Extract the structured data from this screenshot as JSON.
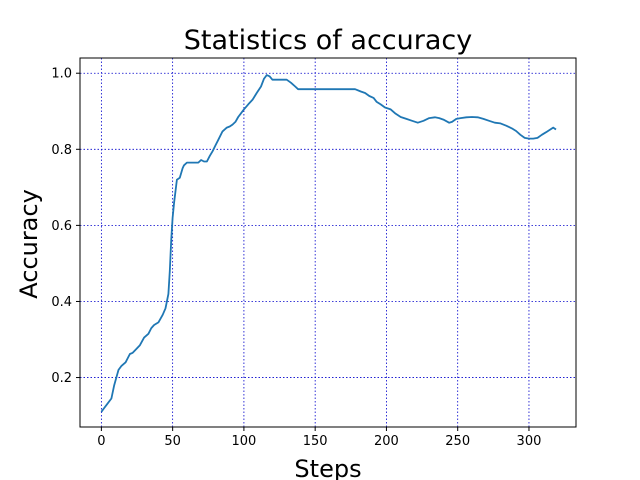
{
  "chart_data": {
    "type": "line",
    "title": "Statistics of accuracy",
    "xlabel": "Steps",
    "ylabel": "Accuracy",
    "xlim": [
      -15,
      333
    ],
    "ylim": [
      0.07,
      1.04
    ],
    "xticks": [
      0,
      50,
      100,
      150,
      200,
      250,
      300
    ],
    "yticks": [
      0.2,
      0.4,
      0.6,
      0.8,
      1.0
    ],
    "ytick_labels": [
      "0.2",
      "0.4",
      "0.6",
      "0.8",
      "1.0"
    ],
    "grid": true,
    "series": [
      {
        "color": "#1f77b4",
        "x": [
          0,
          2,
          4,
          7,
          9,
          12,
          14,
          17,
          20,
          22,
          24,
          27,
          30,
          33,
          35,
          37,
          40,
          43,
          45,
          47,
          48,
          49,
          50,
          51,
          52,
          53,
          55,
          57,
          58,
          60,
          62,
          65,
          68,
          70,
          72,
          74,
          76,
          78,
          80,
          82,
          85,
          88,
          90,
          92,
          94,
          96,
          98,
          100,
          103,
          106,
          109,
          112,
          114,
          116,
          118,
          120,
          125,
          130,
          133,
          136,
          138,
          140,
          150,
          160,
          170,
          178,
          182,
          185,
          188,
          191,
          193,
          196,
          199,
          203,
          206,
          210,
          214,
          218,
          222,
          226,
          230,
          234,
          237,
          240,
          244,
          246,
          249,
          252,
          256,
          260,
          264,
          268,
          272,
          276,
          280,
          284,
          288,
          291,
          294,
          297,
          300,
          303,
          306,
          309,
          312,
          315,
          317,
          319
        ],
        "y": [
          0.11,
          0.12,
          0.13,
          0.145,
          0.18,
          0.22,
          0.23,
          0.24,
          0.262,
          0.265,
          0.273,
          0.285,
          0.305,
          0.315,
          0.33,
          0.338,
          0.345,
          0.365,
          0.382,
          0.42,
          0.48,
          0.56,
          0.62,
          0.66,
          0.69,
          0.72,
          0.725,
          0.75,
          0.758,
          0.765,
          0.765,
          0.765,
          0.765,
          0.772,
          0.768,
          0.768,
          0.782,
          0.795,
          0.81,
          0.825,
          0.847,
          0.857,
          0.86,
          0.865,
          0.872,
          0.885,
          0.895,
          0.905,
          0.918,
          0.93,
          0.948,
          0.965,
          0.985,
          0.995,
          0.992,
          0.983,
          0.983,
          0.983,
          0.975,
          0.965,
          0.958,
          0.958,
          0.958,
          0.958,
          0.958,
          0.958,
          0.952,
          0.948,
          0.94,
          0.935,
          0.925,
          0.918,
          0.91,
          0.905,
          0.895,
          0.885,
          0.88,
          0.875,
          0.87,
          0.875,
          0.882,
          0.884,
          0.882,
          0.878,
          0.87,
          0.872,
          0.88,
          0.882,
          0.884,
          0.885,
          0.884,
          0.88,
          0.875,
          0.87,
          0.868,
          0.862,
          0.855,
          0.848,
          0.838,
          0.83,
          0.828,
          0.828,
          0.83,
          0.838,
          0.845,
          0.852,
          0.857,
          0.852
        ]
      }
    ]
  }
}
